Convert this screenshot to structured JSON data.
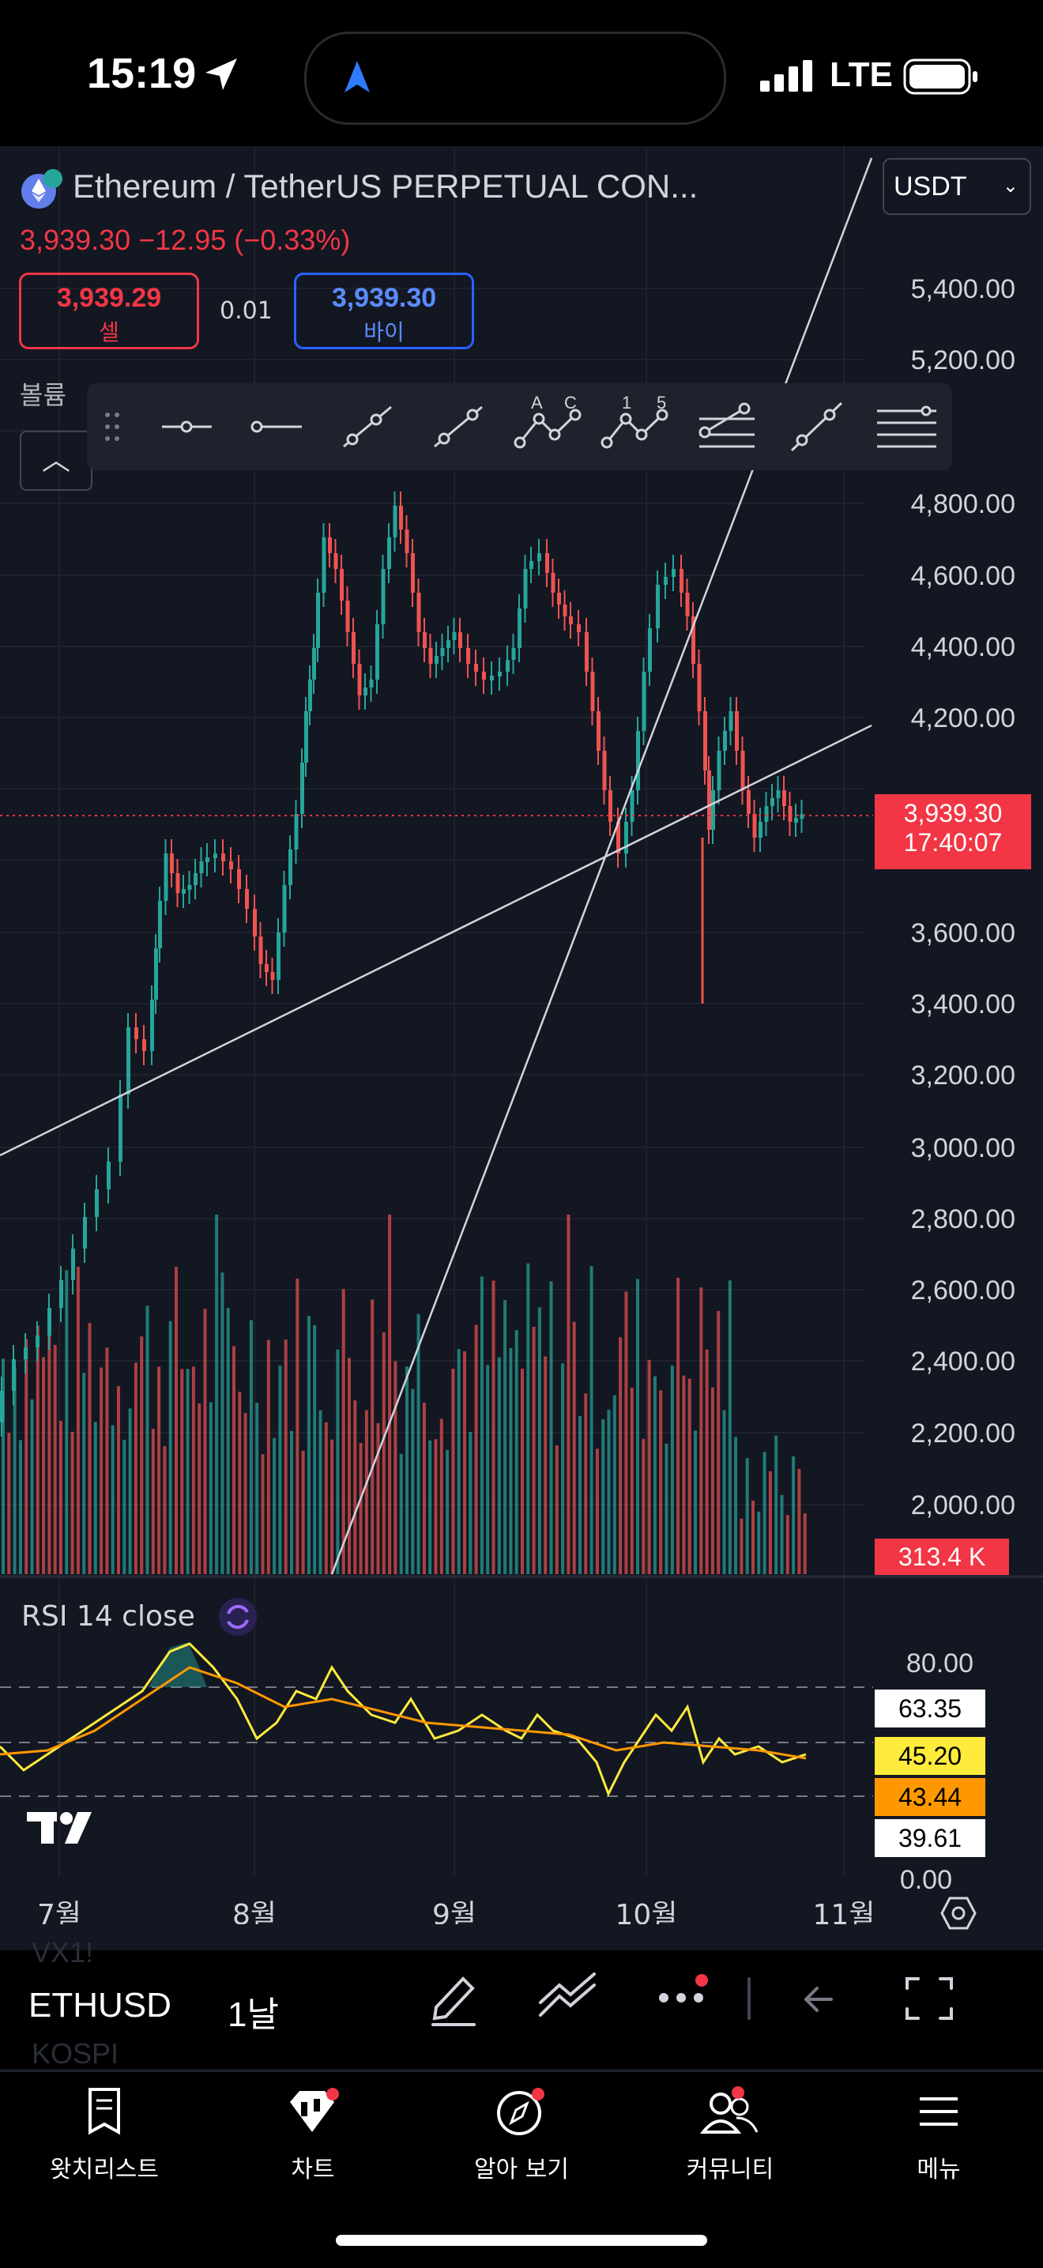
{
  "status": {
    "time": "15:19",
    "network": "LTE"
  },
  "header": {
    "title": "Ethereum / TetherUS PERPETUAL CON...",
    "price_line": "3,939.30 −12.95 (−0.33%)",
    "currency": "USDT",
    "sell": {
      "price": "3,939.29",
      "label": "셀"
    },
    "spread": "0.01",
    "buy": {
      "price": "3,939.30",
      "label": "바이"
    },
    "volume_label": "볼륨"
  },
  "chart": {
    "y_ticks": [
      "5,400.00",
      "5,200.00",
      "4,800.00",
      "4,600.00",
      "4,400.00",
      "4,200.00",
      "3,600.00",
      "3,400.00",
      "3,200.00",
      "3,000.00",
      "2,800.00",
      "2,600.00",
      "2,400.00",
      "2,200.00",
      "2,000.00"
    ],
    "current_price": "3,939.30",
    "countdown": "17:40:07",
    "volume": "313.4 K",
    "x_ticks": [
      "7월",
      "8월",
      "9월",
      "10월",
      "11월"
    ]
  },
  "rsi": {
    "label": "RSI 14 close",
    "levels": [
      "80.00",
      "0.00"
    ],
    "tags": [
      {
        "value": "63.35",
        "bg": "#ffffff",
        "fg": "#000000"
      },
      {
        "value": "45.20",
        "bg": "#ffeb3b",
        "fg": "#000000"
      },
      {
        "value": "43.44",
        "bg": "#ff9800",
        "fg": "#000000"
      },
      {
        "value": "39.61",
        "bg": "#ffffff",
        "fg": "#000000"
      }
    ]
  },
  "toolbar": {
    "symbol": "ETHUSD",
    "interval": "1날",
    "faded_above": "VX1!",
    "faded_below": "KOSPI"
  },
  "tabs": [
    {
      "label": "왓치리스트",
      "icon": "watchlist-icon"
    },
    {
      "label": "차트",
      "icon": "chart-icon"
    },
    {
      "label": "알아 보기",
      "icon": "explore-icon"
    },
    {
      "label": "커뮤니티",
      "icon": "community-icon"
    },
    {
      "label": "메뉴",
      "icon": "menu-icon"
    }
  ],
  "colors": {
    "up": "#26a69a",
    "down": "#ef5350",
    "rsi": "#ffeb3b",
    "rsi_ma": "#ff9800",
    "accent": "#2962ff"
  }
}
